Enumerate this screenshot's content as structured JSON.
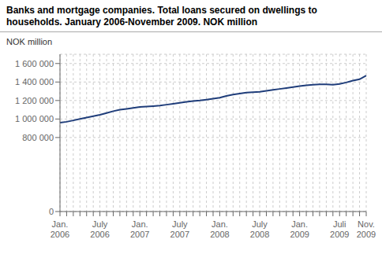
{
  "chart_data": {
    "type": "line",
    "title": "Banks and mortgage companies. Total loans secured on dwellings to\nhouseholds. January 2006-November 2009. NOK million",
    "ylabel": "NOK million",
    "categories": [
      "Jan.\n2006",
      null,
      null,
      null,
      null,
      null,
      "July\n2006",
      null,
      null,
      null,
      null,
      null,
      "Jan.\n2007",
      null,
      null,
      null,
      null,
      null,
      "July\n2007",
      null,
      null,
      null,
      null,
      null,
      "Jan.\n2008",
      null,
      null,
      null,
      null,
      null,
      "July\n2008",
      null,
      null,
      null,
      null,
      null,
      "Jan.\n2009",
      null,
      null,
      null,
      null,
      null,
      "Juli\n2009",
      null,
      null,
      null,
      "Nov.\n2009"
    ],
    "values": [
      960000,
      970000,
      985000,
      1000000,
      1015000,
      1030000,
      1045000,
      1065000,
      1085000,
      1100000,
      1110000,
      1120000,
      1130000,
      1135000,
      1140000,
      1145000,
      1155000,
      1165000,
      1175000,
      1185000,
      1195000,
      1200000,
      1210000,
      1220000,
      1230000,
      1250000,
      1265000,
      1275000,
      1285000,
      1290000,
      1295000,
      1305000,
      1315000,
      1325000,
      1335000,
      1345000,
      1355000,
      1365000,
      1370000,
      1375000,
      1375000,
      1370000,
      1380000,
      1395000,
      1415000,
      1430000,
      1470000
    ],
    "color": "#1f3d7a",
    "ylim": [
      0,
      1700000
    ],
    "yticks": [
      0,
      {
        "value": 800000,
        "label": "800 000"
      },
      {
        "value": 1000000,
        "label": "1 000 000"
      },
      {
        "value": 1200000,
        "label": "1 200 000"
      },
      {
        "value": 1400000,
        "label": "1 400 000"
      },
      {
        "value": 1600000,
        "label": "1 600 000"
      }
    ],
    "grid": true
  }
}
